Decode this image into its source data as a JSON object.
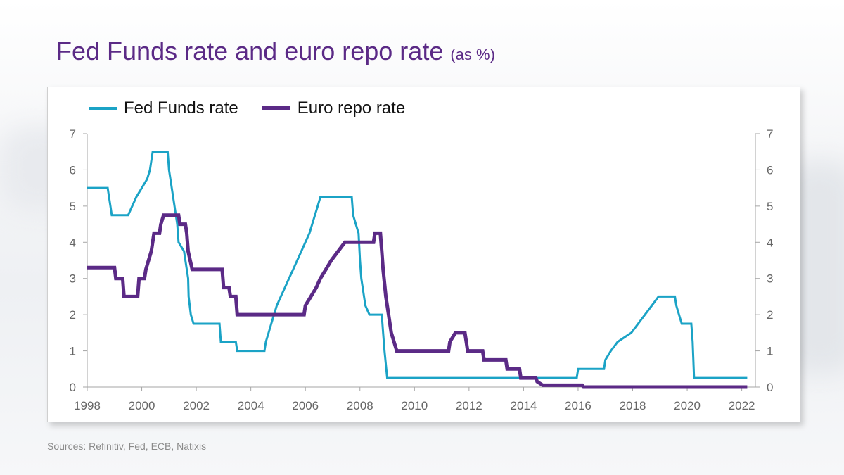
{
  "slide": {
    "title": "Fed Funds rate and euro repo rate",
    "title_unit": "(as %)",
    "source": "Sources: Refinitiv, Fed, ECB, Natixis"
  },
  "chart_data": {
    "type": "line",
    "title": "",
    "xlabel": "",
    "ylabel": "",
    "xlim": [
      1998,
      2022.5
    ],
    "ylim": [
      0,
      7
    ],
    "x_ticks": [
      "1998",
      "2000",
      "2002",
      "2004",
      "2006",
      "2008",
      "2010",
      "2012",
      "2014",
      "2016",
      "2018",
      "2020",
      "2022"
    ],
    "y_ticks_left": [
      "0",
      "1",
      "2",
      "3",
      "4",
      "5",
      "6",
      "7"
    ],
    "y_ticks_right": [
      "0",
      "1",
      "2",
      "3",
      "4",
      "5",
      "6",
      "7"
    ],
    "grid": false,
    "legend": "top-left",
    "series": [
      {
        "name": "Fed Funds rate",
        "color": "#1ba3c6",
        "points": [
          [
            1998.0,
            5.5
          ],
          [
            1998.75,
            5.5
          ],
          [
            1998.8,
            5.25
          ],
          [
            1998.85,
            5.0
          ],
          [
            1998.9,
            4.75
          ],
          [
            1999.5,
            4.75
          ],
          [
            1999.65,
            5.0
          ],
          [
            1999.8,
            5.25
          ],
          [
            2000.0,
            5.5
          ],
          [
            2000.2,
            5.75
          ],
          [
            2000.3,
            6.0
          ],
          [
            2000.4,
            6.5
          ],
          [
            2000.95,
            6.5
          ],
          [
            2001.0,
            6.0
          ],
          [
            2001.1,
            5.5
          ],
          [
            2001.2,
            5.0
          ],
          [
            2001.3,
            4.5
          ],
          [
            2001.35,
            4.0
          ],
          [
            2001.55,
            3.75
          ],
          [
            2001.6,
            3.5
          ],
          [
            2001.7,
            3.0
          ],
          [
            2001.72,
            2.5
          ],
          [
            2001.8,
            2.0
          ],
          [
            2001.9,
            1.75
          ],
          [
            2002.85,
            1.75
          ],
          [
            2002.9,
            1.25
          ],
          [
            2003.45,
            1.25
          ],
          [
            2003.5,
            1.0
          ],
          [
            2004.5,
            1.0
          ],
          [
            2004.55,
            1.25
          ],
          [
            2004.65,
            1.5
          ],
          [
            2004.75,
            1.75
          ],
          [
            2004.85,
            2.0
          ],
          [
            2004.95,
            2.25
          ],
          [
            2005.1,
            2.5
          ],
          [
            2005.25,
            2.75
          ],
          [
            2005.4,
            3.0
          ],
          [
            2005.55,
            3.25
          ],
          [
            2005.7,
            3.5
          ],
          [
            2005.85,
            3.75
          ],
          [
            2006.0,
            4.0
          ],
          [
            2006.15,
            4.25
          ],
          [
            2006.25,
            4.5
          ],
          [
            2006.35,
            4.75
          ],
          [
            2006.45,
            5.0
          ],
          [
            2006.55,
            5.25
          ],
          [
            2007.7,
            5.25
          ],
          [
            2007.75,
            4.75
          ],
          [
            2007.85,
            4.5
          ],
          [
            2007.95,
            4.25
          ],
          [
            2008.0,
            3.5
          ],
          [
            2008.05,
            3.0
          ],
          [
            2008.2,
            2.25
          ],
          [
            2008.35,
            2.0
          ],
          [
            2008.8,
            2.0
          ],
          [
            2008.85,
            1.5
          ],
          [
            2008.9,
            1.0
          ],
          [
            2009.0,
            0.25
          ],
          [
            2015.95,
            0.25
          ],
          [
            2016.0,
            0.5
          ],
          [
            2016.95,
            0.5
          ],
          [
            2017.0,
            0.75
          ],
          [
            2017.2,
            1.0
          ],
          [
            2017.45,
            1.25
          ],
          [
            2017.95,
            1.5
          ],
          [
            2018.2,
            1.75
          ],
          [
            2018.45,
            2.0
          ],
          [
            2018.7,
            2.25
          ],
          [
            2018.95,
            2.5
          ],
          [
            2019.55,
            2.5
          ],
          [
            2019.6,
            2.25
          ],
          [
            2019.7,
            2.0
          ],
          [
            2019.8,
            1.75
          ],
          [
            2020.15,
            1.75
          ],
          [
            2020.2,
            1.25
          ],
          [
            2020.25,
            0.25
          ],
          [
            2022.2,
            0.25
          ]
        ]
      },
      {
        "name": "Euro repo rate",
        "color": "#5b2a86",
        "points": [
          [
            1998.0,
            3.3
          ],
          [
            1999.0,
            3.3
          ],
          [
            1999.05,
            3.0
          ],
          [
            1999.3,
            3.0
          ],
          [
            1999.35,
            2.5
          ],
          [
            1999.85,
            2.5
          ],
          [
            1999.9,
            3.0
          ],
          [
            2000.1,
            3.0
          ],
          [
            2000.15,
            3.25
          ],
          [
            2000.25,
            3.5
          ],
          [
            2000.35,
            3.75
          ],
          [
            2000.45,
            4.25
          ],
          [
            2000.65,
            4.25
          ],
          [
            2000.7,
            4.5
          ],
          [
            2000.8,
            4.75
          ],
          [
            2001.35,
            4.75
          ],
          [
            2001.4,
            4.5
          ],
          [
            2001.6,
            4.5
          ],
          [
            2001.65,
            4.25
          ],
          [
            2001.7,
            3.75
          ],
          [
            2001.85,
            3.25
          ],
          [
            2002.95,
            3.25
          ],
          [
            2003.0,
            2.75
          ],
          [
            2003.2,
            2.75
          ],
          [
            2003.25,
            2.5
          ],
          [
            2003.45,
            2.5
          ],
          [
            2003.5,
            2.0
          ],
          [
            2005.95,
            2.0
          ],
          [
            2006.0,
            2.25
          ],
          [
            2006.2,
            2.5
          ],
          [
            2006.4,
            2.75
          ],
          [
            2006.55,
            3.0
          ],
          [
            2006.75,
            3.25
          ],
          [
            2006.95,
            3.5
          ],
          [
            2007.2,
            3.75
          ],
          [
            2007.45,
            4.0
          ],
          [
            2008.5,
            4.0
          ],
          [
            2008.55,
            4.25
          ],
          [
            2008.75,
            4.25
          ],
          [
            2008.8,
            3.75
          ],
          [
            2008.85,
            3.25
          ],
          [
            2008.95,
            2.5
          ],
          [
            2009.05,
            2.0
          ],
          [
            2009.15,
            1.5
          ],
          [
            2009.25,
            1.25
          ],
          [
            2009.35,
            1.0
          ],
          [
            2011.25,
            1.0
          ],
          [
            2011.3,
            1.25
          ],
          [
            2011.5,
            1.5
          ],
          [
            2011.85,
            1.5
          ],
          [
            2011.9,
            1.25
          ],
          [
            2011.95,
            1.0
          ],
          [
            2012.5,
            1.0
          ],
          [
            2012.55,
            0.75
          ],
          [
            2013.35,
            0.75
          ],
          [
            2013.4,
            0.5
          ],
          [
            2013.85,
            0.5
          ],
          [
            2013.9,
            0.25
          ],
          [
            2014.45,
            0.25
          ],
          [
            2014.5,
            0.15
          ],
          [
            2014.7,
            0.05
          ],
          [
            2016.15,
            0.05
          ],
          [
            2016.2,
            0.0
          ],
          [
            2022.2,
            0.0
          ]
        ]
      }
    ]
  }
}
